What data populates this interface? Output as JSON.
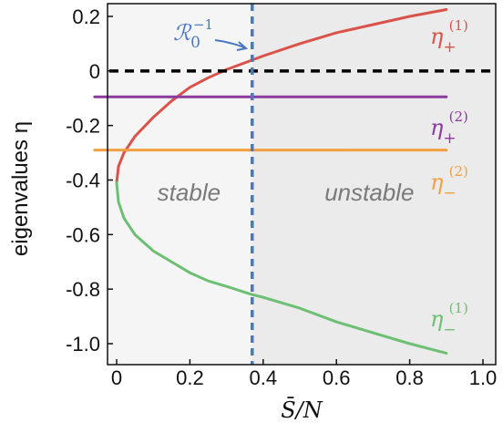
{
  "chart_data": {
    "type": "line",
    "title": "",
    "xlabel": "S̄/N",
    "ylabel": "eigenvalues η",
    "xlim": [
      0,
      1.0
    ],
    "ylim": [
      -1.05,
      0.24
    ],
    "x_ticks": [
      "0",
      "0.2",
      "0.4",
      "0.6",
      "0.8",
      "1.0"
    ],
    "y_ticks": [
      "0.2",
      "0",
      "-0.2",
      "-0.4",
      "-0.6",
      "-0.8",
      "-1.0"
    ],
    "grid": false,
    "threshold": {
      "name": "R0^-1",
      "label_main": "ℛ",
      "label_sub": "0",
      "label_sup": "−1",
      "x": 0.37,
      "color": "#4a78c0"
    },
    "regions": [
      {
        "label": "stable",
        "x_from": 0,
        "x_to": 0.37,
        "color": "#f5f5f5"
      },
      {
        "label": "unstable",
        "x_from": 0.37,
        "x_to": 1.0,
        "color": "#ebebeb"
      }
    ],
    "zero_line": {
      "y": 0,
      "color": "#000000"
    },
    "series": [
      {
        "name": "η₊⁽¹⁾",
        "label_main": "η",
        "label_sub": "+",
        "label_sup": "(1)",
        "color": "#d9534a",
        "x": [
          0,
          0.005,
          0.02,
          0.05,
          0.1,
          0.15,
          0.2,
          0.25,
          0.3,
          0.37,
          0.4,
          0.5,
          0.6,
          0.7,
          0.8,
          0.9
        ],
        "y": [
          -0.41,
          -0.35,
          -0.3,
          -0.24,
          -0.17,
          -0.11,
          -0.06,
          -0.025,
          0.005,
          0.04,
          0.055,
          0.1,
          0.14,
          0.17,
          0.2,
          0.225
        ]
      },
      {
        "name": "η₋⁽¹⁾",
        "label_main": "η",
        "label_sub": "−",
        "label_sup": "(1)",
        "color": "#6cbf73",
        "x": [
          0,
          0.005,
          0.02,
          0.05,
          0.1,
          0.15,
          0.2,
          0.25,
          0.3,
          0.37,
          0.4,
          0.5,
          0.6,
          0.7,
          0.8,
          0.9
        ],
        "y": [
          -0.41,
          -0.48,
          -0.54,
          -0.6,
          -0.66,
          -0.7,
          -0.74,
          -0.77,
          -0.79,
          -0.82,
          -0.83,
          -0.87,
          -0.92,
          -0.96,
          -1.0,
          -1.035
        ]
      },
      {
        "name": "η₊⁽²⁾",
        "label_main": "η",
        "label_sub": "+",
        "label_sup": "(2)",
        "color": "#8b3a9e",
        "x": [
          -0.06,
          0.9
        ],
        "y": [
          -0.095,
          -0.095
        ]
      },
      {
        "name": "η₋⁽²⁾",
        "label_main": "η",
        "label_sub": "−",
        "label_sup": "(2)",
        "color": "#f0a040",
        "x": [
          -0.06,
          0.9
        ],
        "y": [
          -0.29,
          -0.29
        ]
      }
    ]
  }
}
